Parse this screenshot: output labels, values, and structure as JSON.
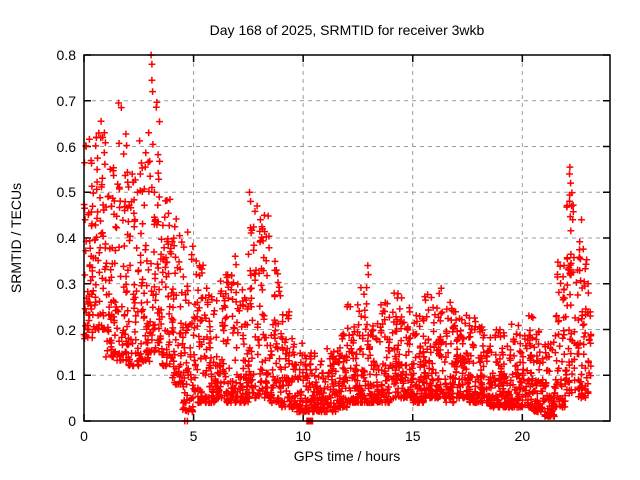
{
  "chart": {
    "title": "Day 168 of 2025, SRMTID for receiver 3wkb",
    "xlabel": "GPS time / hours",
    "ylabel": "SRMTID / TECUs"
  },
  "chart_data": {
    "type": "scatter",
    "title": "Day 168 of 2025, SRMTID for receiver 3wkb",
    "xlabel": "GPS time / hours",
    "ylabel": "SRMTID / TECUs",
    "xlim": [
      0,
      24
    ],
    "ylim": [
      0,
      0.8
    ],
    "x_ticks": [
      0,
      5,
      10,
      15,
      20
    ],
    "y_ticks": [
      0,
      0.1,
      0.2,
      0.3,
      0.4,
      0.5,
      0.6,
      0.7,
      0.8
    ],
    "grid": true,
    "grid_style": "dashed-gray",
    "legend": "none",
    "colors": {
      "marker": "#ff0000",
      "grid": "#9b9b9b",
      "axis": "#000000",
      "background": "#ffffff"
    },
    "series": [
      {
        "name": "srmtid",
        "marker": "plus",
        "color": "#ff0000",
        "seed": 168,
        "envelope_bins_columns": [
          "x_start",
          "x_end",
          "count",
          "y_min",
          "y_max",
          "skew"
        ],
        "envelope_bins": [
          [
            0.0,
            0.5,
            58,
            0.18,
            0.62,
            1.5
          ],
          [
            0.5,
            1.0,
            58,
            0.2,
            0.64,
            1.5
          ],
          [
            1.0,
            1.5,
            58,
            0.14,
            0.56,
            1.7
          ],
          [
            1.5,
            2.0,
            58,
            0.13,
            0.66,
            1.7
          ],
          [
            2.0,
            2.5,
            58,
            0.12,
            0.55,
            1.7
          ],
          [
            2.5,
            3.0,
            58,
            0.13,
            0.62,
            1.7
          ],
          [
            3.0,
            3.5,
            58,
            0.15,
            0.7,
            1.8
          ],
          [
            3.5,
            4.0,
            58,
            0.12,
            0.5,
            1.9
          ],
          [
            4.0,
            4.5,
            58,
            0.08,
            0.45,
            2.0
          ],
          [
            4.5,
            5.0,
            58,
            0.02,
            0.42,
            2.0
          ],
          [
            5.0,
            5.5,
            58,
            0.04,
            0.35,
            2.1
          ],
          [
            5.5,
            6.0,
            58,
            0.04,
            0.3,
            2.1
          ],
          [
            6.0,
            6.5,
            58,
            0.05,
            0.32,
            2.1
          ],
          [
            6.5,
            7.0,
            58,
            0.04,
            0.35,
            2.1
          ],
          [
            7.0,
            7.5,
            58,
            0.04,
            0.3,
            2.1
          ],
          [
            7.5,
            8.0,
            58,
            0.05,
            0.47,
            2.1
          ],
          [
            8.0,
            8.5,
            58,
            0.05,
            0.45,
            2.1
          ],
          [
            8.5,
            9.0,
            58,
            0.04,
            0.35,
            2.3
          ],
          [
            9.0,
            9.5,
            58,
            0.03,
            0.25,
            2.3
          ],
          [
            9.5,
            10.0,
            58,
            0.02,
            0.17,
            1.9
          ],
          [
            10.0,
            10.5,
            58,
            0.02,
            0.15,
            1.9
          ],
          [
            10.5,
            11.0,
            58,
            0.02,
            0.15,
            1.9
          ],
          [
            11.0,
            11.5,
            58,
            0.02,
            0.16,
            1.9
          ],
          [
            11.5,
            12.0,
            58,
            0.03,
            0.2,
            1.9
          ],
          [
            12.0,
            12.5,
            58,
            0.04,
            0.26,
            2.1
          ],
          [
            12.5,
            13.0,
            58,
            0.04,
            0.31,
            2.2
          ],
          [
            13.0,
            13.5,
            58,
            0.04,
            0.22,
            2.0
          ],
          [
            13.5,
            14.0,
            58,
            0.04,
            0.26,
            2.1
          ],
          [
            14.0,
            14.5,
            58,
            0.05,
            0.28,
            2.1
          ],
          [
            14.5,
            15.0,
            58,
            0.05,
            0.26,
            2.1
          ],
          [
            15.0,
            15.5,
            58,
            0.04,
            0.24,
            2.1
          ],
          [
            15.5,
            16.0,
            58,
            0.05,
            0.28,
            2.1
          ],
          [
            16.0,
            16.5,
            58,
            0.05,
            0.28,
            2.1
          ],
          [
            16.5,
            17.0,
            58,
            0.04,
            0.26,
            2.1
          ],
          [
            17.0,
            17.5,
            58,
            0.05,
            0.25,
            2.1
          ],
          [
            17.5,
            18.0,
            58,
            0.04,
            0.23,
            2.1
          ],
          [
            18.0,
            18.5,
            58,
            0.04,
            0.21,
            2.1
          ],
          [
            18.5,
            19.0,
            58,
            0.03,
            0.2,
            2.1
          ],
          [
            19.0,
            19.5,
            58,
            0.03,
            0.2,
            2.1
          ],
          [
            19.5,
            20.0,
            58,
            0.03,
            0.22,
            2.1
          ],
          [
            20.0,
            20.5,
            58,
            0.03,
            0.24,
            2.1
          ],
          [
            20.5,
            21.0,
            58,
            0.02,
            0.2,
            2.1
          ],
          [
            21.0,
            21.5,
            58,
            0.01,
            0.19,
            2.1
          ],
          [
            21.5,
            22.0,
            58,
            0.03,
            0.35,
            1.9
          ],
          [
            22.0,
            22.5,
            58,
            0.06,
            0.5,
            1.6
          ],
          [
            22.5,
            23.0,
            58,
            0.05,
            0.4,
            1.7
          ],
          [
            23.0,
            23.15,
            14,
            0.05,
            0.3,
            1.7
          ]
        ],
        "highlight_points": [
          [
            3.06,
            0.8
          ],
          [
            3.1,
            0.78
          ],
          [
            3.1,
            0.745
          ],
          [
            3.13,
            0.72
          ],
          [
            1.58,
            0.695
          ],
          [
            1.7,
            0.685
          ],
          [
            0.78,
            0.655
          ],
          [
            0.85,
            0.62
          ],
          [
            2.95,
            0.63
          ],
          [
            0.05,
            0.44
          ],
          [
            0.1,
            0.6
          ],
          [
            7.55,
            0.5
          ],
          [
            7.6,
            0.48
          ],
          [
            7.9,
            0.47
          ],
          [
            8.05,
            0.44
          ],
          [
            8.15,
            0.42
          ],
          [
            6.9,
            0.36
          ],
          [
            12.95,
            0.34
          ],
          [
            12.97,
            0.32
          ],
          [
            16.3,
            0.29
          ],
          [
            15.85,
            0.27
          ],
          [
            20.3,
            0.23
          ],
          [
            21.9,
            0.34
          ],
          [
            22.17,
            0.555
          ],
          [
            22.15,
            0.54
          ],
          [
            22.2,
            0.52
          ],
          [
            22.25,
            0.47
          ],
          [
            22.3,
            0.44
          ],
          [
            22.7,
            0.44
          ],
          [
            23.0,
            0.3
          ],
          [
            4.6,
            0.0
          ],
          [
            4.72,
            0.0
          ]
        ]
      },
      {
        "name": "zero-flag",
        "marker": "filled-square",
        "color": "#ff0000",
        "points": [
          [
            10.3,
            0.0
          ]
        ]
      }
    ]
  }
}
